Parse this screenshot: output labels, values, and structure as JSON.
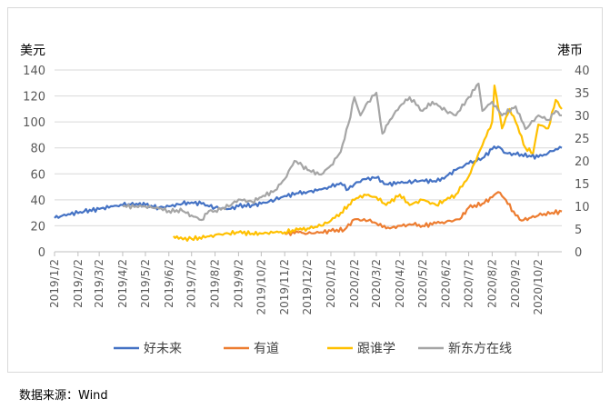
{
  "chart_data": {
    "type": "line",
    "title": "",
    "left_axis": {
      "unit_label": "美元",
      "ylim": [
        0,
        140
      ],
      "ticks": [
        0,
        20,
        40,
        60,
        80,
        100,
        120,
        140
      ]
    },
    "right_axis": {
      "unit_label": "港币",
      "ylim": [
        0,
        40
      ],
      "ticks": [
        0,
        5,
        10,
        15,
        20,
        25,
        30,
        35,
        40
      ]
    },
    "x_range": [
      "2019-01-02",
      "2020-11-02"
    ],
    "x_ticks": [
      "2019/1/2",
      "2019/2/2",
      "2019/3/2",
      "2019/4/2",
      "2019/5/2",
      "2019/6/2",
      "2019/7/2",
      "2019/8/2",
      "2019/9/2",
      "2019/10/2",
      "2019/11/2",
      "2019/12/2",
      "2020/1/2",
      "2020/2/2",
      "2020/3/2",
      "2020/4/2",
      "2020/5/2",
      "2020/6/2",
      "2020/7/2",
      "2020/8/2",
      "2020/9/2",
      "2020/10/2"
    ],
    "grid": true,
    "legend_position": "bottom",
    "series": [
      {
        "name": "好未来",
        "axis": "left",
        "color": "#4472C4",
        "points": [
          [
            "2019-01-02",
            26
          ],
          [
            "2019-01-20",
            29
          ],
          [
            "2019-02-10",
            31
          ],
          [
            "2019-03-02",
            33
          ],
          [
            "2019-03-20",
            35
          ],
          [
            "2019-04-02",
            36
          ],
          [
            "2019-04-20",
            37
          ],
          [
            "2019-05-02",
            36
          ],
          [
            "2019-05-20",
            34
          ],
          [
            "2019-06-02",
            35
          ],
          [
            "2019-06-20",
            37
          ],
          [
            "2019-07-02",
            38
          ],
          [
            "2019-07-15",
            37
          ],
          [
            "2019-08-02",
            34
          ],
          [
            "2019-08-20",
            33
          ],
          [
            "2019-09-02",
            35
          ],
          [
            "2019-09-20",
            36
          ],
          [
            "2019-10-02",
            37
          ],
          [
            "2019-10-20",
            40
          ],
          [
            "2019-11-02",
            43
          ],
          [
            "2019-11-20",
            45
          ],
          [
            "2019-12-02",
            46
          ],
          [
            "2019-12-20",
            48
          ],
          [
            "2020-01-02",
            50
          ],
          [
            "2020-01-15",
            53
          ],
          [
            "2020-01-25",
            48
          ],
          [
            "2020-02-02",
            52
          ],
          [
            "2020-02-15",
            56
          ],
          [
            "2020-03-02",
            57
          ],
          [
            "2020-03-15",
            52
          ],
          [
            "2020-04-02",
            53
          ],
          [
            "2020-04-20",
            54
          ],
          [
            "2020-05-02",
            55
          ],
          [
            "2020-05-20",
            54
          ],
          [
            "2020-06-02",
            58
          ],
          [
            "2020-06-15",
            63
          ],
          [
            "2020-07-02",
            68
          ],
          [
            "2020-07-20",
            72
          ],
          [
            "2020-08-02",
            79
          ],
          [
            "2020-08-10",
            81
          ],
          [
            "2020-08-20",
            76
          ],
          [
            "2020-09-02",
            75
          ],
          [
            "2020-09-20",
            74
          ],
          [
            "2020-10-02",
            73
          ],
          [
            "2020-10-15",
            76
          ],
          [
            "2020-10-25",
            79
          ],
          [
            "2020-11-02",
            80
          ]
        ]
      },
      {
        "name": "有道",
        "axis": "left",
        "color": "#ED7D31",
        "points": [
          [
            "2019-11-02",
            14
          ],
          [
            "2019-11-20",
            15
          ],
          [
            "2019-12-02",
            14
          ],
          [
            "2019-12-20",
            15
          ],
          [
            "2020-01-02",
            16
          ],
          [
            "2020-01-20",
            17
          ],
          [
            "2020-02-02",
            25
          ],
          [
            "2020-02-20",
            24
          ],
          [
            "2020-03-02",
            22
          ],
          [
            "2020-03-10",
            19
          ],
          [
            "2020-03-20",
            18
          ],
          [
            "2020-04-02",
            20
          ],
          [
            "2020-04-20",
            21
          ],
          [
            "2020-05-02",
            20
          ],
          [
            "2020-05-20",
            22
          ],
          [
            "2020-06-02",
            23
          ],
          [
            "2020-06-20",
            25
          ],
          [
            "2020-07-02",
            34
          ],
          [
            "2020-07-20",
            37
          ],
          [
            "2020-08-02",
            42
          ],
          [
            "2020-08-10",
            46
          ],
          [
            "2020-08-20",
            40
          ],
          [
            "2020-09-02",
            28
          ],
          [
            "2020-09-10",
            24
          ],
          [
            "2020-09-20",
            26
          ],
          [
            "2020-10-02",
            28
          ],
          [
            "2020-10-20",
            30
          ],
          [
            "2020-11-02",
            31
          ]
        ]
      },
      {
        "name": "跟谁学",
        "axis": "left",
        "color": "#FFC000",
        "points": [
          [
            "2019-06-08",
            12
          ],
          [
            "2019-06-15",
            10
          ],
          [
            "2019-07-02",
            10
          ],
          [
            "2019-07-20",
            11
          ],
          [
            "2019-08-02",
            13
          ],
          [
            "2019-08-20",
            14
          ],
          [
            "2019-09-02",
            15
          ],
          [
            "2019-09-20",
            14
          ],
          [
            "2019-10-02",
            14
          ],
          [
            "2019-10-20",
            15
          ],
          [
            "2019-11-02",
            15
          ],
          [
            "2019-11-20",
            17
          ],
          [
            "2019-12-02",
            18
          ],
          [
            "2019-12-20",
            20
          ],
          [
            "2020-01-02",
            24
          ],
          [
            "2020-01-15",
            30
          ],
          [
            "2020-02-02",
            40
          ],
          [
            "2020-02-15",
            44
          ],
          [
            "2020-03-02",
            42
          ],
          [
            "2020-03-15",
            36
          ],
          [
            "2020-04-02",
            44
          ],
          [
            "2020-04-15",
            36
          ],
          [
            "2020-05-02",
            40
          ],
          [
            "2020-05-20",
            36
          ],
          [
            "2020-06-02",
            40
          ],
          [
            "2020-06-15",
            44
          ],
          [
            "2020-07-02",
            58
          ],
          [
            "2020-07-20",
            82
          ],
          [
            "2020-08-02",
            100
          ],
          [
            "2020-08-05",
            128
          ],
          [
            "2020-08-15",
            95
          ],
          [
            "2020-08-25",
            110
          ],
          [
            "2020-09-02",
            100
          ],
          [
            "2020-09-15",
            80
          ],
          [
            "2020-09-25",
            76
          ],
          [
            "2020-10-02",
            98
          ],
          [
            "2020-10-15",
            95
          ],
          [
            "2020-10-25",
            117
          ],
          [
            "2020-11-02",
            110
          ]
        ]
      },
      {
        "name": "新东方在线",
        "axis": "right",
        "color": "#A5A5A5",
        "points": [
          [
            "2019-04-02",
            10
          ],
          [
            "2019-04-20",
            10
          ],
          [
            "2019-05-02",
            10
          ],
          [
            "2019-05-20",
            9.5
          ],
          [
            "2019-06-02",
            9
          ],
          [
            "2019-06-20",
            9
          ],
          [
            "2019-07-02",
            8
          ],
          [
            "2019-07-15",
            7
          ],
          [
            "2019-07-25",
            9
          ],
          [
            "2019-08-02",
            9
          ],
          [
            "2019-08-20",
            10
          ],
          [
            "2019-09-02",
            11.5
          ],
          [
            "2019-09-20",
            11
          ],
          [
            "2019-10-02",
            12
          ],
          [
            "2019-10-20",
            13.5
          ],
          [
            "2019-11-02",
            16
          ],
          [
            "2019-11-15",
            20
          ],
          [
            "2019-11-25",
            19
          ],
          [
            "2019-12-02",
            18
          ],
          [
            "2019-12-20",
            17
          ],
          [
            "2020-01-02",
            19
          ],
          [
            "2020-01-15",
            22
          ],
          [
            "2020-01-25",
            28
          ],
          [
            "2020-02-02",
            34
          ],
          [
            "2020-02-10",
            30
          ],
          [
            "2020-02-20",
            33
          ],
          [
            "2020-03-02",
            35
          ],
          [
            "2020-03-10",
            26
          ],
          [
            "2020-03-20",
            29
          ],
          [
            "2020-04-02",
            32
          ],
          [
            "2020-04-15",
            34
          ],
          [
            "2020-05-02",
            31
          ],
          [
            "2020-05-15",
            33
          ],
          [
            "2020-06-02",
            31
          ],
          [
            "2020-06-15",
            30
          ],
          [
            "2020-07-02",
            34
          ],
          [
            "2020-07-15",
            37
          ],
          [
            "2020-07-20",
            31
          ],
          [
            "2020-08-02",
            33
          ],
          [
            "2020-08-15",
            30
          ],
          [
            "2020-09-02",
            32
          ],
          [
            "2020-09-15",
            27
          ],
          [
            "2020-10-02",
            30
          ],
          [
            "2020-10-15",
            29
          ],
          [
            "2020-10-25",
            31
          ],
          [
            "2020-11-02",
            30
          ]
        ]
      }
    ]
  },
  "source_note": "数据来源：Wind"
}
